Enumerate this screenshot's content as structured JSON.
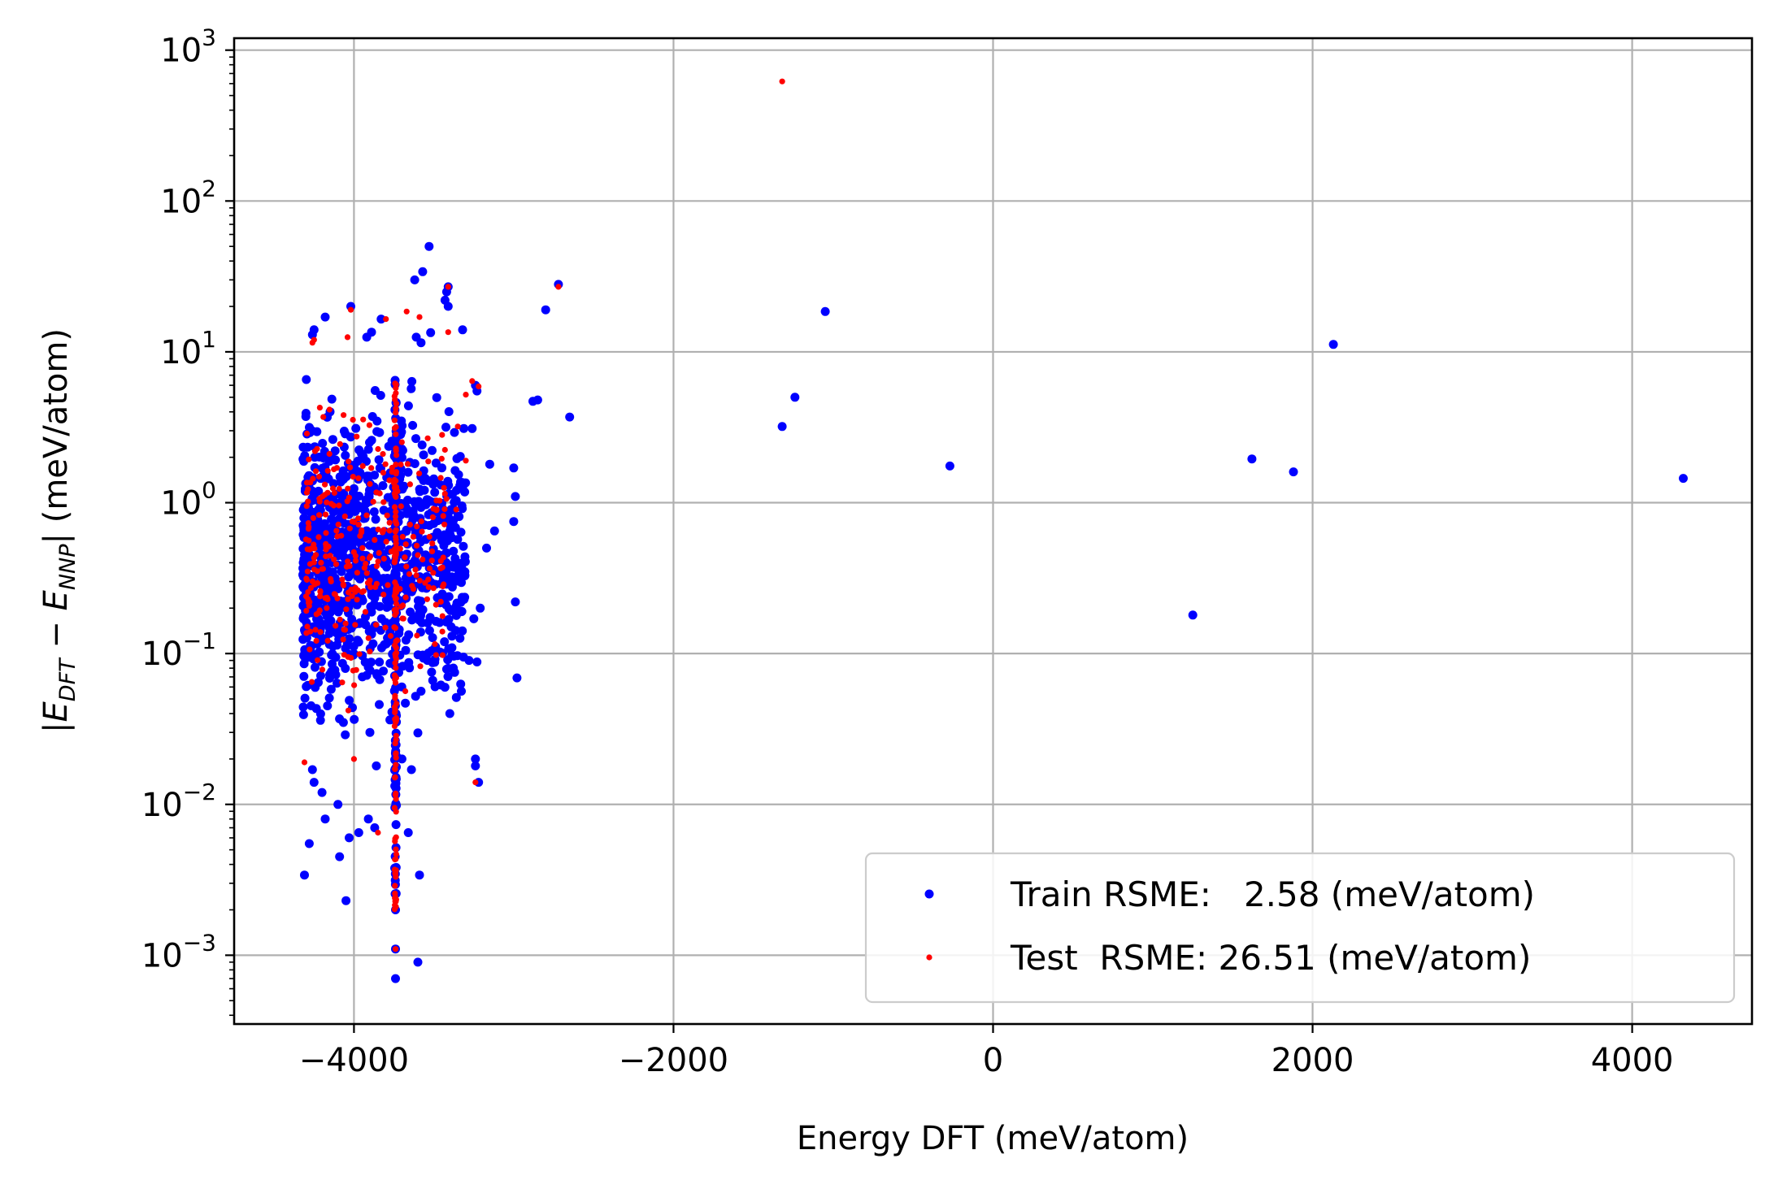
{
  "chart_data": {
    "type": "scatter",
    "title": "",
    "xlabel": "Energy DFT (meV/atom)",
    "ylabel": "|E_DFT − E_NNP| (meV/atom)",
    "ylabel_parts": {
      "open": "|",
      "e1": "E",
      "sub1": "DFT",
      "minus": " − ",
      "e2": "E",
      "sub2": "NNP",
      "close": "| (meV/atom)"
    },
    "xlim": [
      -4750,
      4750
    ],
    "ylim": [
      0.00035,
      1200
    ],
    "yscale": "log",
    "grid": true,
    "legend_position": "lower-right",
    "x_ticks": [
      {
        "value": -4000,
        "label": "−4000"
      },
      {
        "value": -2000,
        "label": "−2000"
      },
      {
        "value": 0,
        "label": "0"
      },
      {
        "value": 2000,
        "label": "2000"
      },
      {
        "value": 4000,
        "label": "4000"
      }
    ],
    "y_ticks": [
      {
        "value": 0.001,
        "base": "10",
        "exp": "−3"
      },
      {
        "value": 0.01,
        "base": "10",
        "exp": "−2"
      },
      {
        "value": 0.1,
        "base": "10",
        "exp": "−1"
      },
      {
        "value": 1,
        "base": "10",
        "exp": "0"
      },
      {
        "value": 10,
        "base": "10",
        "exp": "1"
      },
      {
        "value": 100,
        "base": "10",
        "exp": "2"
      },
      {
        "value": 1000,
        "base": "10",
        "exp": "3"
      }
    ],
    "series": [
      {
        "name": "Train RSME:   2.58 (meV/atom)",
        "color": "#0000ff",
        "marker_radius": 5.5,
        "points": [
          [
            -2980,
            0.069
          ],
          [
            -2990,
            0.22
          ],
          [
            -3000,
            0.75
          ],
          [
            -2990,
            1.1
          ],
          [
            -3000,
            1.7
          ],
          [
            -2800,
            19
          ],
          [
            -2880,
            4.7
          ],
          [
            -2850,
            4.8
          ],
          [
            -2650,
            3.7
          ],
          [
            -2720,
            28
          ],
          [
            -3230,
            0.088
          ],
          [
            -3240,
            0.018
          ],
          [
            -3240,
            0.02
          ],
          [
            -3220,
            0.014
          ],
          [
            -3280,
            0.09
          ],
          [
            -3260,
            3.1
          ],
          [
            -3240,
            6.0
          ],
          [
            -3230,
            5.5
          ],
          [
            -3250,
            0.17
          ],
          [
            -3120,
            0.65
          ],
          [
            -3150,
            1.8
          ],
          [
            -3170,
            0.5
          ],
          [
            -3210,
            0.2
          ],
          [
            -3320,
            14
          ],
          [
            -3330,
            0.3
          ],
          [
            -3370,
            0.075
          ],
          [
            -3400,
            0.04
          ],
          [
            -3410,
            27
          ],
          [
            -3420,
            25
          ],
          [
            -3410,
            20
          ],
          [
            -3430,
            22
          ],
          [
            -3530,
            50
          ],
          [
            -3570,
            34
          ],
          [
            -3620,
            30
          ],
          [
            -3540,
            0.09
          ],
          [
            -3590,
            0.0034
          ],
          [
            -3640,
            0.017
          ],
          [
            -3660,
            0.0065
          ],
          [
            -3700,
            0.02
          ],
          [
            -3740,
            0.0007
          ],
          [
            -3600,
            0.0009
          ],
          [
            -3740,
            0.0011
          ],
          [
            -3740,
            0.002
          ],
          [
            -3870,
            0.007
          ],
          [
            -3860,
            0.018
          ],
          [
            -3900,
            0.03
          ],
          [
            -3910,
            0.008
          ],
          [
            -4050,
            0.0023
          ],
          [
            -4090,
            0.0045
          ],
          [
            -4030,
            0.006
          ],
          [
            -3970,
            0.0065
          ],
          [
            -4100,
            0.01
          ],
          [
            -4180,
            0.008
          ],
          [
            -4200,
            0.012
          ],
          [
            -4250,
            0.014
          ],
          [
            -4310,
            0.0034
          ],
          [
            -4280,
            0.0055
          ],
          [
            -4260,
            0.017
          ],
          [
            -4250,
            14
          ],
          [
            -4260,
            13
          ],
          [
            -4180,
            17
          ],
          [
            -4020,
            20
          ],
          [
            -3830,
            16.5
          ],
          [
            -3920,
            12.5
          ],
          [
            -3890,
            13.5
          ],
          [
            -3520,
            13.4
          ],
          [
            -3610,
            12.5
          ],
          [
            -3580,
            11.5
          ],
          [
            -1320,
            3.2
          ],
          [
            -1240,
            5.0
          ],
          [
            -1050,
            18.5
          ],
          [
            -270,
            1.75
          ],
          [
            1250,
            0.18
          ],
          [
            1620,
            1.95
          ],
          [
            1880,
            1.6
          ],
          [
            2130,
            11.2
          ],
          [
            4320,
            1.45
          ]
        ],
        "cluster": {
          "x_range": [
            -4320,
            -3300
          ],
          "y_log10_range": [
            -1.7,
            0.95
          ],
          "count": 1000
        },
        "strip": {
          "x": -3740,
          "y_log10_range": [
            -2.6,
            0.85
          ],
          "count": 90
        }
      },
      {
        "name": "Test  RSME: 26.51 (meV/atom)",
        "color": "#ff0000",
        "marker_radius": 3.6,
        "points": [
          [
            -1320,
            620
          ],
          [
            -2720,
            27
          ],
          [
            -3410,
            27
          ],
          [
            -3590,
            17
          ],
          [
            -3800,
            16.5
          ],
          [
            -3670,
            18.5
          ],
          [
            -4020,
            19
          ],
          [
            -4040,
            12.5
          ],
          [
            -4250,
            12
          ],
          [
            -4260,
            11.5
          ],
          [
            -3410,
            13.5
          ],
          [
            -3300,
            5.2
          ],
          [
            -3260,
            6.4
          ],
          [
            -3220,
            5.9
          ],
          [
            -3240,
            0.014
          ],
          [
            -3300,
            1.9
          ],
          [
            -3350,
            3.2
          ],
          [
            -3360,
            0.9
          ],
          [
            -4000,
            0.02
          ],
          [
            -3850,
            0.0065
          ],
          [
            -3740,
            0.0011
          ],
          [
            -3740,
            0.0021
          ],
          [
            -4310,
            0.019
          ],
          [
            -4290,
            0.35
          ]
        ],
        "cluster": {
          "x_range": [
            -4300,
            -3420
          ],
          "y_log10_range": [
            -1.5,
            0.85
          ],
          "count": 300
        },
        "strip": {
          "x": -3740,
          "y_log10_range": [
            -2.7,
            0.8
          ],
          "count": 130
        }
      }
    ]
  }
}
